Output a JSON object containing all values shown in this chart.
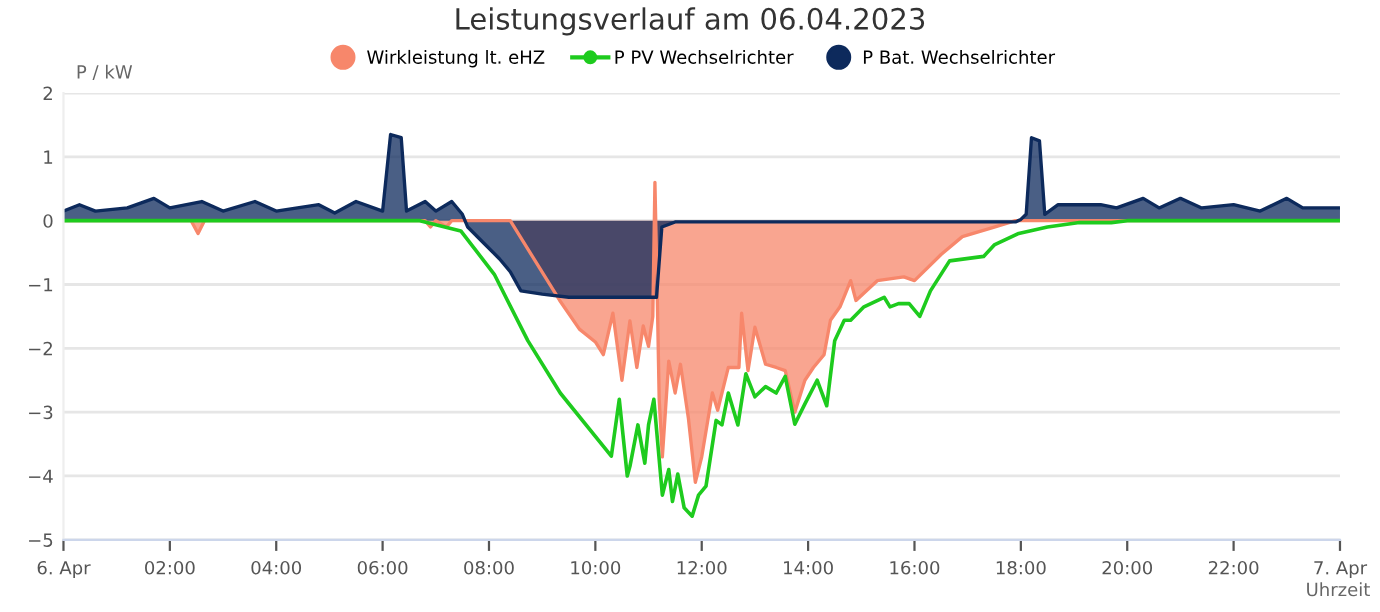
{
  "chart_data": {
    "type": "area",
    "title": "Leistungsverlauf am 06.04.2023",
    "ylabel": "P / kW",
    "xlabel": "Uhrzeit",
    "xlim": [
      0,
      24
    ],
    "xticks": [
      {
        "value": 0,
        "label": "6. Apr"
      },
      {
        "value": 2,
        "label": "02:00"
      },
      {
        "value": 4,
        "label": "04:00"
      },
      {
        "value": 6,
        "label": "06:00"
      },
      {
        "value": 8,
        "label": "08:00"
      },
      {
        "value": 10,
        "label": "10:00"
      },
      {
        "value": 12,
        "label": "12:00"
      },
      {
        "value": 14,
        "label": "14:00"
      },
      {
        "value": 16,
        "label": "16:00"
      },
      {
        "value": 18,
        "label": "18:00"
      },
      {
        "value": 20,
        "label": "20:00"
      },
      {
        "value": 22,
        "label": "22:00"
      },
      {
        "value": 24,
        "label": "7. Apr"
      }
    ],
    "ylim": [
      -5,
      2
    ],
    "yticks": [
      -5,
      -4,
      -3,
      -2,
      -1,
      0,
      1,
      2
    ],
    "grid": "y",
    "legend": "top",
    "series": [
      {
        "name": "Wirkleistung lt. eHZ",
        "color": "#f7876b",
        "x": [
          0,
          2.4,
          2.53,
          2.65,
          5,
          6.8,
          6.9,
          7.0,
          7.2,
          7.3,
          8.4,
          9.33,
          9.7,
          10.0,
          10.15,
          10.33,
          10.5,
          10.65,
          10.78,
          10.9,
          11.0,
          11.08,
          11.12,
          11.16,
          11.2,
          11.26,
          11.38,
          11.5,
          11.6,
          11.75,
          11.88,
          12.0,
          12.2,
          12.3,
          12.5,
          12.7,
          12.75,
          12.87,
          13.0,
          13.2,
          13.4,
          13.57,
          13.75,
          13.94,
          14.1,
          14.3,
          14.42,
          14.6,
          14.8,
          14.9,
          15.3,
          15.8,
          16.0,
          16.5,
          16.9,
          17.5,
          17.9,
          20,
          22,
          24
        ],
        "values": [
          0,
          0,
          -0.2,
          0,
          0,
          0,
          -0.1,
          0,
          -0.1,
          0,
          0,
          -1.25,
          -1.7,
          -1.9,
          -2.1,
          -1.45,
          -2.5,
          -1.57,
          -2.3,
          -1.65,
          -1.97,
          -1.5,
          0.6,
          -1.0,
          -2.8,
          -3.7,
          -2.2,
          -2.7,
          -2.25,
          -3.1,
          -4.1,
          -3.7,
          -2.7,
          -2.97,
          -2.3,
          -2.3,
          -1.45,
          -2.35,
          -1.67,
          -2.25,
          -2.3,
          -2.35,
          -3.0,
          -2.5,
          -2.3,
          -2.1,
          -1.56,
          -1.35,
          -0.94,
          -1.25,
          -0.94,
          -0.88,
          -0.94,
          -0.53,
          -0.25,
          -0.1,
          0,
          0,
          0,
          0
        ]
      },
      {
        "name": "P PV Wechselrichter",
        "type": "line",
        "color": "#1ecb1e",
        "x": [
          0,
          6.7,
          7.47,
          8.1,
          8.73,
          9.34,
          10.3,
          10.45,
          10.6,
          10.65,
          10.8,
          10.93,
          11.0,
          11.1,
          11.26,
          11.38,
          11.45,
          11.55,
          11.67,
          11.82,
          11.94,
          12.08,
          12.27,
          12.38,
          12.5,
          12.68,
          12.83,
          13.0,
          13.2,
          13.4,
          13.57,
          13.75,
          13.94,
          14.17,
          14.35,
          14.5,
          14.68,
          14.8,
          15.05,
          15.43,
          15.54,
          15.7,
          15.9,
          16.1,
          16.3,
          16.66,
          17.3,
          17.5,
          17.96,
          18.5,
          19.1,
          19.7,
          20.0,
          24
        ],
        "values": [
          0,
          0,
          -0.16,
          -0.84,
          -1.88,
          -2.7,
          -3.69,
          -2.8,
          -4.0,
          -3.85,
          -3.2,
          -3.8,
          -3.2,
          -2.8,
          -4.3,
          -3.9,
          -4.4,
          -3.97,
          -4.5,
          -4.63,
          -4.3,
          -4.16,
          -3.13,
          -3.2,
          -2.7,
          -3.2,
          -2.4,
          -2.76,
          -2.6,
          -2.7,
          -2.44,
          -3.19,
          -2.87,
          -2.5,
          -2.9,
          -1.88,
          -1.56,
          -1.56,
          -1.35,
          -1.2,
          -1.35,
          -1.3,
          -1.3,
          -1.5,
          -1.1,
          -0.63,
          -0.56,
          -0.38,
          -0.2,
          -0.1,
          -0.03,
          -0.03,
          0,
          0
        ]
      },
      {
        "name": "P Bat. Wechselrichter",
        "color": "#0d2a5c",
        "x": [
          0,
          0.3,
          0.6,
          1.2,
          1.7,
          2.0,
          2.6,
          3.0,
          3.6,
          4.0,
          4.8,
          5.1,
          5.5,
          6.0,
          6.15,
          6.35,
          6.45,
          6.8,
          7.0,
          7.3,
          7.5,
          7.6,
          7.9,
          8.2,
          8.4,
          8.6,
          9.0,
          9.5,
          11.15,
          11.25,
          11.5,
          17.9,
          18.0,
          18.1,
          18.2,
          18.35,
          18.45,
          18.7,
          19.5,
          19.8,
          20.3,
          20.6,
          21.0,
          21.4,
          22.0,
          22.5,
          23.0,
          23.3,
          23.8,
          24.0
        ],
        "values": [
          0.15,
          0.25,
          0.15,
          0.2,
          0.35,
          0.2,
          0.3,
          0.15,
          0.3,
          0.15,
          0.25,
          0.12,
          0.3,
          0.15,
          1.35,
          1.3,
          0.15,
          0.3,
          0.15,
          0.3,
          0.1,
          -0.1,
          -0.35,
          -0.6,
          -0.8,
          -1.1,
          -1.15,
          -1.2,
          -1.2,
          -0.1,
          -0.02,
          -0.02,
          0.02,
          0.1,
          1.3,
          1.25,
          0.1,
          0.25,
          0.25,
          0.2,
          0.35,
          0.2,
          0.35,
          0.2,
          0.25,
          0.15,
          0.35,
          0.2,
          0.2,
          0.2
        ]
      }
    ]
  }
}
